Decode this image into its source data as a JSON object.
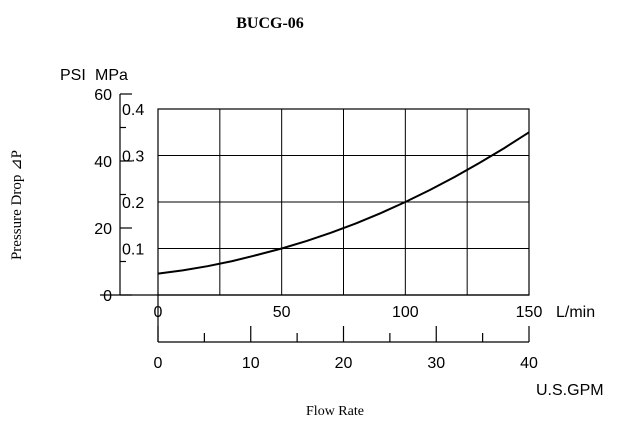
{
  "chart_data": {
    "type": "line",
    "title": "BUCG-06",
    "xlabel": "Flow Rate",
    "ylabel": "Pressure Drop ⊿P",
    "y_axes": {
      "psi": {
        "unit": "PSI",
        "ticks": [
          "0",
          "20",
          "40",
          "60"
        ]
      },
      "mpa": {
        "unit": "MPa",
        "ticks": [
          "0.1",
          "0.2",
          "0.3",
          "0.4"
        ]
      }
    },
    "x_axes": {
      "lmin": {
        "unit": "L/min",
        "ticks": [
          "0",
          "50",
          "100",
          "150"
        ]
      },
      "gpm": {
        "unit": "U.S.GPM",
        "ticks": [
          "0",
          "10",
          "20",
          "30",
          "40"
        ]
      }
    },
    "xlim": [
      0,
      150
    ],
    "ylim": [
      0,
      0.4
    ],
    "grid": true,
    "series": [
      {
        "x": [
          0,
          10,
          20,
          30,
          40,
          50,
          60,
          70,
          80,
          90,
          100,
          110,
          120,
          130,
          140,
          150
        ],
        "values": [
          0.046,
          0.053,
          0.062,
          0.073,
          0.086,
          0.1,
          0.116,
          0.134,
          0.154,
          0.176,
          0.2,
          0.226,
          0.254,
          0.284,
          0.316,
          0.35
        ]
      }
    ]
  }
}
